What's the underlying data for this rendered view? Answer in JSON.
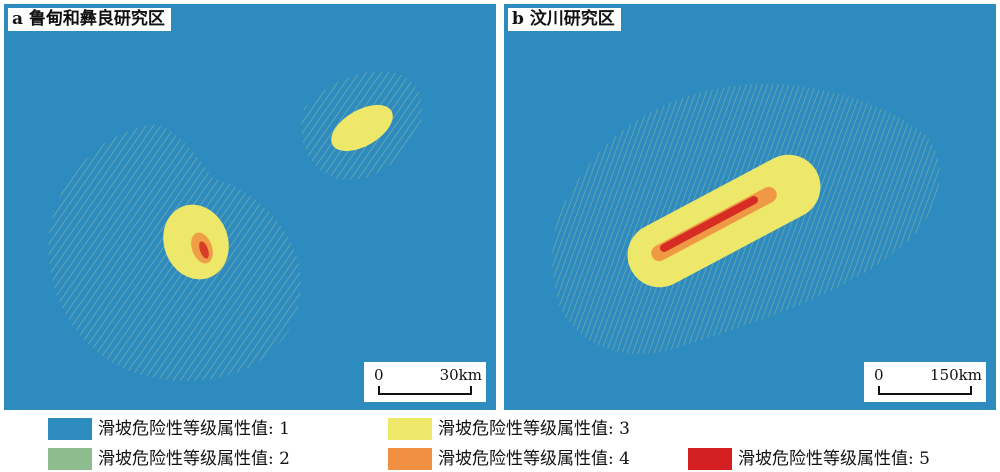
{
  "panels": [
    {
      "title": "a 鲁甸和彝良研究区",
      "scale_zero": "0",
      "scale_distance": "30km"
    },
    {
      "title": "b 汶川研究区",
      "scale_zero": "0",
      "scale_distance": "150km"
    }
  ],
  "colors": {
    "level1": "#2e8bc0",
    "level2": "#8fbc8f",
    "level3": "#eee86a",
    "level4": "#f09040",
    "level5": "#d42020"
  },
  "legend": [
    {
      "label": "滑坡危险性等级属性值: 1",
      "color": "#2e8bc0"
    },
    {
      "label": "滑坡危险性等级属性值: 2",
      "color": "#8fbc8f"
    },
    {
      "label": "滑坡危险性等级属性值: 3",
      "color": "#eee86a"
    },
    {
      "label": "滑坡危险性等级属性值: 4",
      "color": "#f09040"
    },
    {
      "label": "滑坡危险性等级属性值: 5",
      "color": "#d42020"
    }
  ]
}
